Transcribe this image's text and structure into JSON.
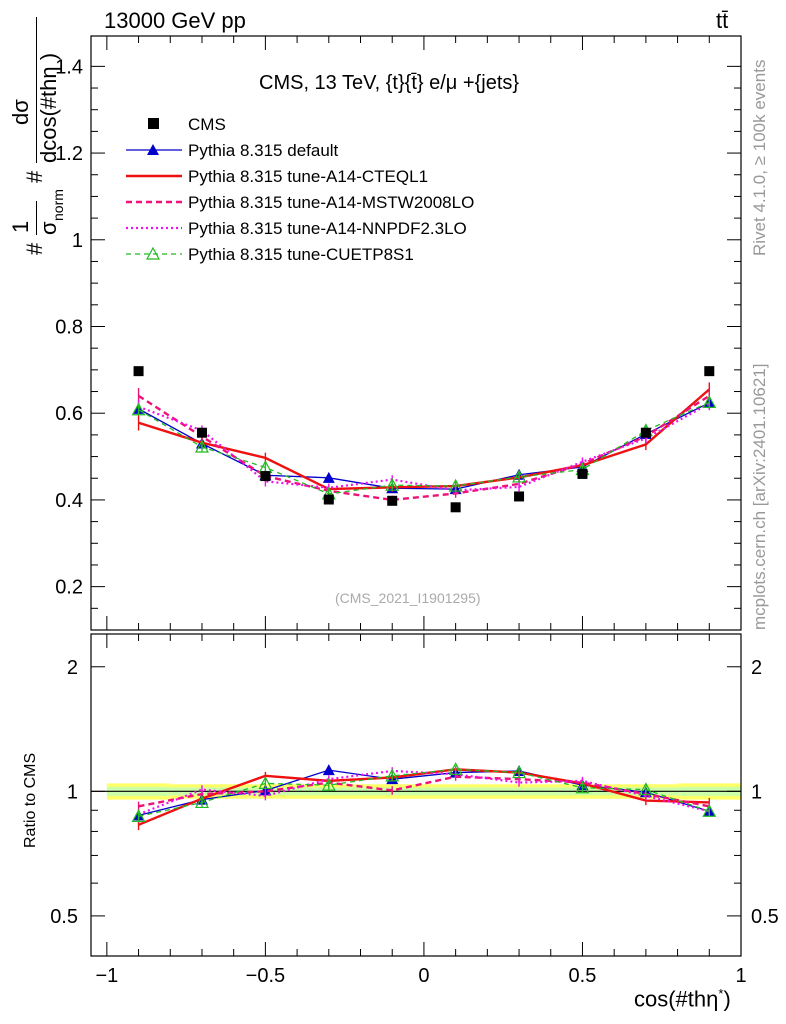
{
  "header": {
    "energy_label": "13000 GeV pp",
    "process_label": "tt̄"
  },
  "side_labels": {
    "rivet": "Rivet 4.1.0, ≥ 100k events",
    "mcplots": "mcplots.cern.ch [arXiv:2401.10621]"
  },
  "colors": {
    "cms": "#000000",
    "default": "#0000cc",
    "cteql1": "#ee1111",
    "mstw": "#ee1177",
    "nnpdf": "#ee11ee",
    "cuetp8s1": "#22bb22",
    "band_outer": "#ffff66",
    "band_inner": "#ccffaa"
  },
  "chart_data": {
    "type": "line",
    "title": "CMS, 13 TeV, {t}{t̄} e/μ +{jets}",
    "analysis_id": "(CMS_2021_I1901295)",
    "ylabel": "#1/σnorm #dσ/dcos(#thη )",
    "ylabel_parts": {
      "hash": "#",
      "one": "1",
      "sigma": "σ",
      "norm": "norm",
      "dsigma": "dσ",
      "dcos": "dcos(#thη )"
    },
    "ratio_ylabel": "Ratio to CMS",
    "xlabel": "cos(#thη )",
    "xlabel_parts": {
      "main": "cos(#thη",
      "star": "*",
      "close": ")"
    },
    "xlim": [
      -1.05,
      1.0
    ],
    "ylim": [
      0.1,
      1.47
    ],
    "ratio_ylim": [
      0.4,
      2.4
    ],
    "x_ticks": [
      "−1",
      "−0.5",
      "0",
      "0.5",
      "1"
    ],
    "x_tick_values": [
      -1,
      -0.5,
      0,
      0.5,
      1
    ],
    "y_ticks": [
      "0.2",
      "0.4",
      "0.6",
      "0.8",
      "1",
      "1.2",
      "1.4"
    ],
    "y_tick_values": [
      0.2,
      0.4,
      0.6,
      0.8,
      1.0,
      1.2,
      1.4
    ],
    "ratio_y_ticks": [
      "0.5",
      "1",
      "2"
    ],
    "ratio_y_tick_values": [
      0.5,
      1,
      2
    ],
    "x": [
      -0.9,
      -0.7,
      -0.5,
      -0.3,
      -0.1,
      0.1,
      0.3,
      0.5,
      0.7,
      0.9
    ],
    "data": {
      "name": "CMS",
      "values": [
        0.697,
        0.555,
        0.455,
        0.401,
        0.398,
        0.383,
        0.408,
        0.46,
        0.555,
        0.697
      ]
    },
    "series": [
      {
        "key": "default",
        "name": "Pythia 8.315 default",
        "values": [
          0.61,
          0.53,
          0.457,
          0.451,
          0.427,
          0.425,
          0.458,
          0.476,
          0.552,
          0.624
        ],
        "errors": [
          0.013,
          0.01,
          0.01,
          0.01,
          0.01,
          0.01,
          0.01,
          0.01,
          0.012,
          0.013
        ]
      },
      {
        "key": "cteql1",
        "name": "Pythia 8.315 tune-A14-CTEQL1",
        "values": [
          0.578,
          0.532,
          0.497,
          0.425,
          0.429,
          0.432,
          0.452,
          0.48,
          0.528,
          0.655
        ],
        "errors": [
          0.018,
          0.012,
          0.012,
          0.01,
          0.01,
          0.01,
          0.01,
          0.01,
          0.013,
          0.016
        ]
      },
      {
        "key": "mstw",
        "name": "Pythia 8.315 tune-A14-MSTW2008LO",
        "values": [
          0.64,
          0.546,
          0.455,
          0.421,
          0.4,
          0.415,
          0.437,
          0.483,
          0.547,
          0.64
        ],
        "errors": [
          0.018,
          0.012,
          0.012,
          0.01,
          0.01,
          0.01,
          0.01,
          0.01,
          0.012,
          0.016
        ]
      },
      {
        "key": "nnpdf",
        "name": "Pythia 8.315 tune-A14-NNPDF2.3LO",
        "values": [
          0.615,
          0.56,
          0.443,
          0.428,
          0.447,
          0.422,
          0.43,
          0.488,
          0.542,
          0.622
        ],
        "errors": [
          0.016,
          0.012,
          0.012,
          0.01,
          0.01,
          0.01,
          0.01,
          0.01,
          0.012,
          0.015
        ]
      },
      {
        "key": "cuetp8s1",
        "name": "Pythia 8.315 tune-CUETP8S1",
        "values": [
          0.608,
          0.522,
          0.475,
          0.414,
          0.434,
          0.432,
          0.453,
          0.47,
          0.56,
          0.625
        ],
        "errors": [
          0.013,
          0.01,
          0.01,
          0.01,
          0.01,
          0.01,
          0.01,
          0.01,
          0.012,
          0.013
        ]
      }
    ],
    "ratios": [
      {
        "key": "default",
        "values": [
          0.875,
          0.955,
          1.005,
          1.125,
          1.07,
          1.11,
          1.12,
          1.035,
          0.995,
          0.895
        ]
      },
      {
        "key": "cteql1",
        "values": [
          0.83,
          0.96,
          1.09,
          1.06,
          1.08,
          1.13,
          1.11,
          1.045,
          0.95,
          0.94
        ]
      },
      {
        "key": "mstw",
        "values": [
          0.92,
          0.985,
          1.0,
          1.05,
          1.005,
          1.085,
          1.07,
          1.05,
          0.985,
          0.92
        ]
      },
      {
        "key": "nnpdf",
        "values": [
          0.88,
          1.01,
          0.975,
          1.07,
          1.12,
          1.1,
          1.05,
          1.06,
          0.975,
          0.895
        ]
      },
      {
        "key": "cuetp8s1",
        "values": [
          0.87,
          0.94,
          1.045,
          1.035,
          1.09,
          1.13,
          1.11,
          1.02,
          1.01,
          0.895
        ]
      }
    ],
    "band": {
      "outer": [
        0.045,
        0.04,
        0.04,
        0.04,
        0.04,
        0.04,
        0.04,
        0.04,
        0.04,
        0.045
      ],
      "inner": [
        0.025,
        0.022,
        0.022,
        0.022,
        0.022,
        0.022,
        0.022,
        0.022,
        0.022,
        0.025
      ]
    }
  }
}
